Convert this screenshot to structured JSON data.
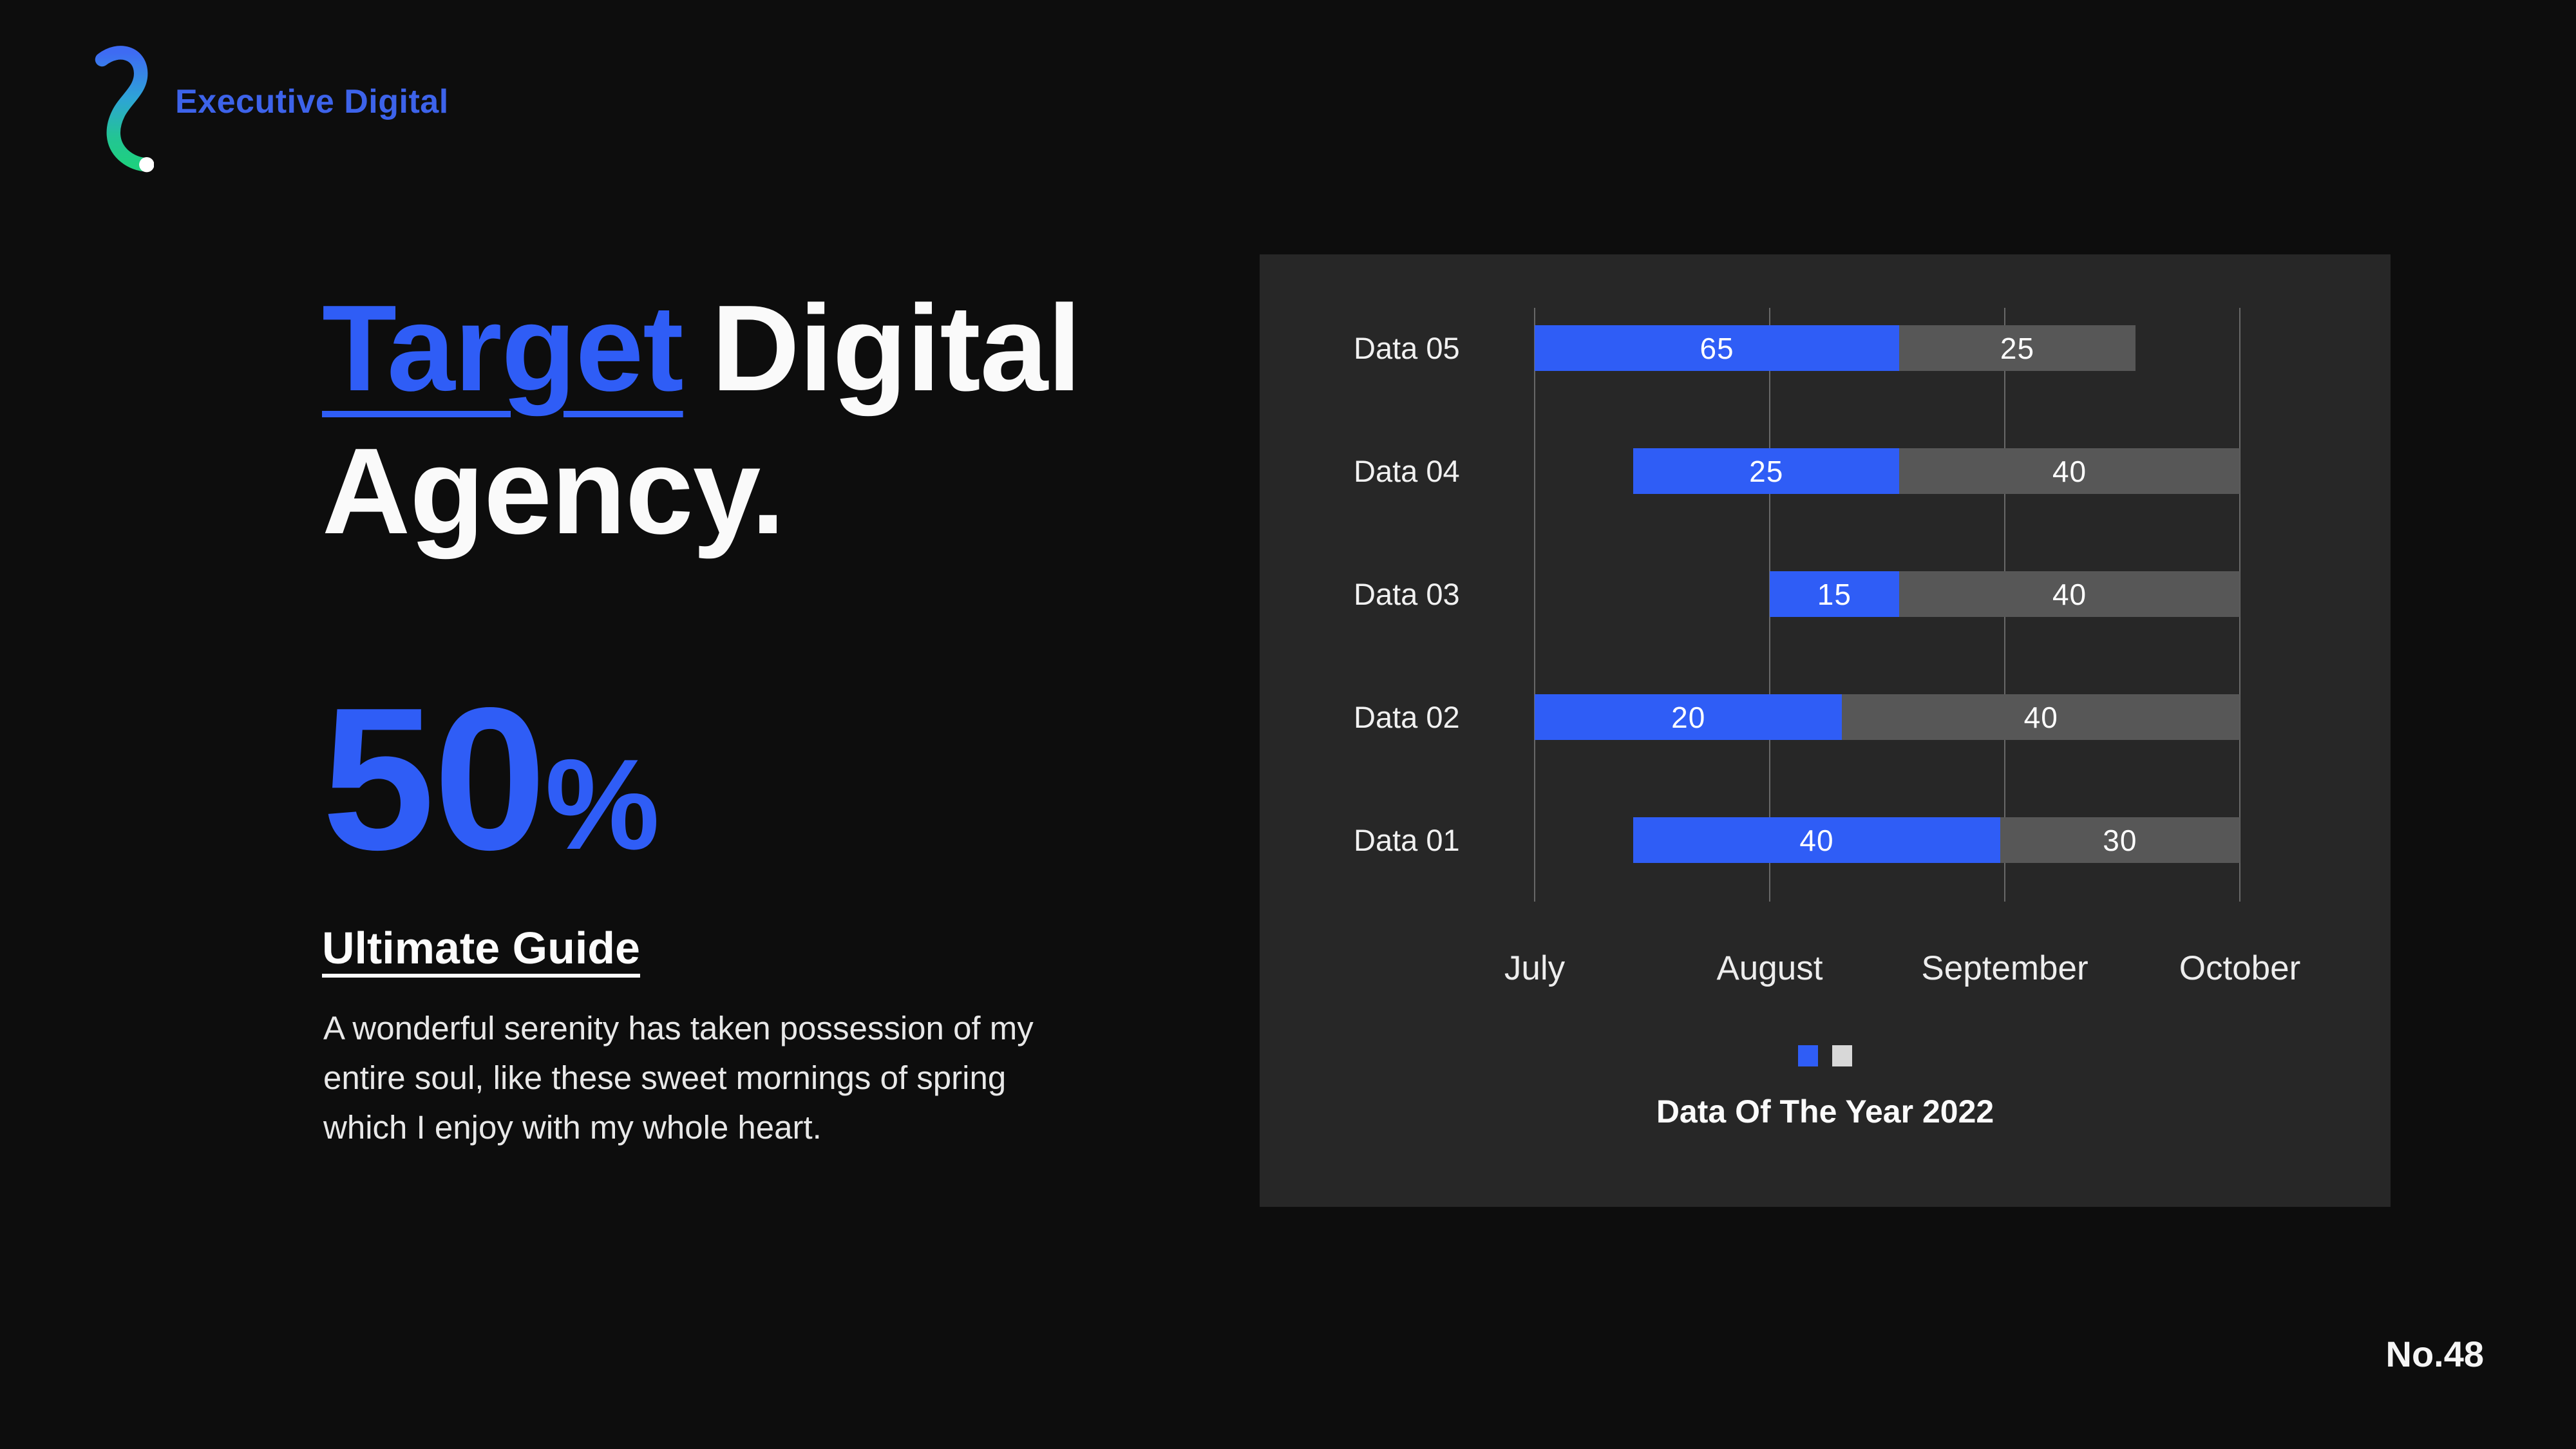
{
  "page": {
    "background_color": "#0D0D0D",
    "page_number": "No.48"
  },
  "logo": {
    "name": "Executive Digital",
    "text_color": "#3D63EA",
    "mark": "squiggle-gradient-blue-to-green-with-white-dot",
    "mark_gradient": [
      "#3E6BF3",
      "#2EA3D8",
      "#23C495",
      "#1ED07F"
    ]
  },
  "hero": {
    "title_highlight": "Target",
    "title_rest_line1": "Digital",
    "title_line2": "Agency.",
    "stat_value": "50",
    "stat_unit": "%",
    "subtitle": "Ultimate Guide",
    "paragraph": "A wonderful serenity has taken possession of my\nentire soul, like these sweet mornings of spring\nwhich I enjoy with my whole heart."
  },
  "colors": {
    "accent_blue": "#2F5DF6",
    "bar_gray": "#575757",
    "panel_background": "#272727",
    "gridline": "rgba(255,255,255,0.30)",
    "text_white": "#FAFAFA"
  },
  "chart_data": {
    "type": "bar",
    "orientation": "horizontal",
    "stacked": true,
    "title": "Data Of The Year 2022",
    "categories": [
      "Data 05",
      "Data 04",
      "Data 03",
      "Data 02",
      "Data 01"
    ],
    "series": [
      {
        "name": "series-1-blue",
        "color": "#2F5DF6",
        "values": [
          65,
          25,
          15,
          20,
          40
        ]
      },
      {
        "name": "series-2-gray",
        "color": "#575757",
        "values": [
          25,
          40,
          40,
          40,
          30
        ]
      }
    ],
    "x_axis": {
      "labels": [
        "July",
        "August",
        "September",
        "October"
      ],
      "positions_pct": [
        0,
        33.33,
        66.67,
        100
      ]
    },
    "grid": "vertical-only",
    "legend": {
      "position": "bottom-center",
      "swatch_colors": [
        "#2F5DF6",
        "#D8D8D8"
      ]
    },
    "bar_layout_pct": [
      {
        "segments": [
          {
            "left": 0,
            "width": 51.7
          },
          {
            "left": 51.7,
            "width": 33.5
          }
        ]
      },
      {
        "segments": [
          {
            "left": 14,
            "width": 37.7
          },
          {
            "left": 51.7,
            "width": 48.3
          }
        ]
      },
      {
        "segments": [
          {
            "left": 33.3,
            "width": 18.4
          },
          {
            "left": 51.7,
            "width": 48.3
          }
        ]
      },
      {
        "segments": [
          {
            "left": 0,
            "width": 43.6
          },
          {
            "left": 43.6,
            "width": 56.4
          }
        ]
      },
      {
        "segments": [
          {
            "left": 14,
            "width": 52
          },
          {
            "left": 66,
            "width": 34
          }
        ]
      }
    ]
  }
}
